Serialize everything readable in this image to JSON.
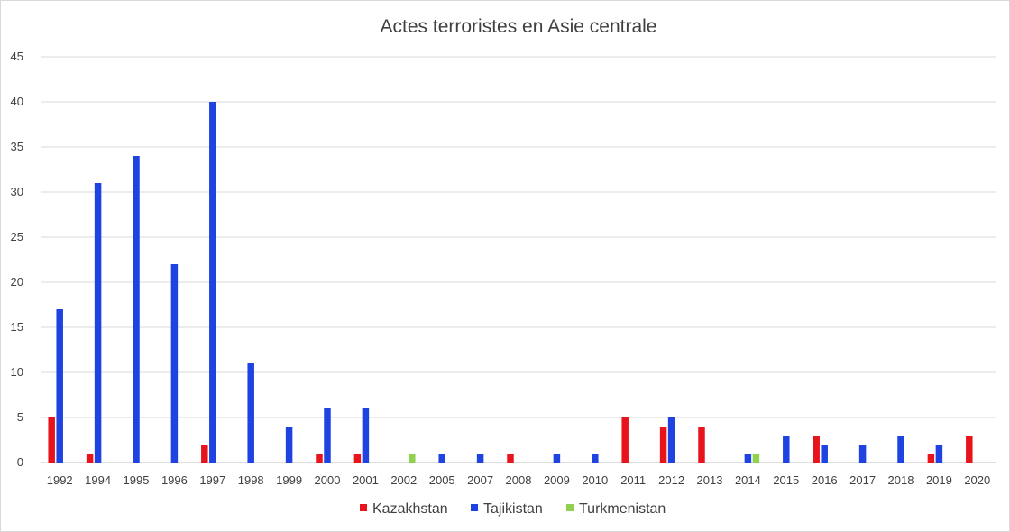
{
  "chart_data": {
    "type": "bar",
    "title": "Actes terroristes en Asie centrale",
    "xlabel": "",
    "ylabel": "",
    "ylim": [
      0,
      45
    ],
    "yticks": [
      0,
      5,
      10,
      15,
      20,
      25,
      30,
      35,
      40,
      45
    ],
    "grid": true,
    "legend_position": "bottom",
    "categories": [
      "1992",
      "1994",
      "1995",
      "1996",
      "1997",
      "1998",
      "1999",
      "2000",
      "2001",
      "2002",
      "2005",
      "2007",
      "2008",
      "2009",
      "2010",
      "2011",
      "2012",
      "2013",
      "2014",
      "2015",
      "2016",
      "2017",
      "2018",
      "2019",
      "2020"
    ],
    "series": [
      {
        "name": "Kazakhstan",
        "color": "#e8141c",
        "values": [
          5,
          1,
          0,
          0,
          2,
          0,
          0,
          1,
          1,
          0,
          0,
          0,
          1,
          0,
          0,
          5,
          4,
          4,
          0,
          0,
          3,
          0,
          0,
          1,
          3
        ]
      },
      {
        "name": "Tajikistan",
        "color": "#1f43e0",
        "values": [
          17,
          31,
          34,
          22,
          40,
          11,
          4,
          6,
          6,
          0,
          1,
          1,
          0,
          1,
          1,
          0,
          5,
          0,
          1,
          3,
          2,
          2,
          3,
          2,
          0
        ]
      },
      {
        "name": "Turkmenistan",
        "color": "#92d050",
        "values": [
          0,
          0,
          0,
          0,
          0,
          0,
          0,
          0,
          0,
          1,
          0,
          0,
          0,
          0,
          0,
          0,
          0,
          0,
          1,
          0,
          0,
          0,
          0,
          0,
          0
        ]
      }
    ]
  }
}
